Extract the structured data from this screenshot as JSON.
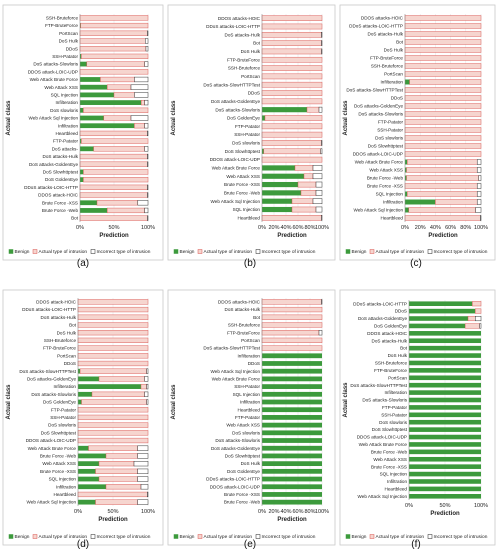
{
  "legend": {
    "benign": "Benign",
    "actual": "Actual type of intrusion",
    "incorrect": "Incorrect type of intrusion"
  },
  "colors": {
    "benign": "#3c9a3c",
    "actual": "#f6d5cf",
    "actual_stroke": "#d9534f",
    "incorrect": "#ffffff"
  },
  "chart_data": [
    {
      "type": "bar",
      "stacked": true,
      "orientation": "horizontal",
      "caption": "(a)",
      "xlabel": "Prediction",
      "ylabel": "Actual class",
      "xticks": [
        "0%",
        "50%",
        "100%"
      ],
      "xlim": [
        0,
        100
      ],
      "categories": [
        "SSH-Bruteforce",
        "FTP-BruteForce",
        "PortScan",
        "DoS Hulk",
        "DDoS",
        "SSH-Patator",
        "DoS attacks-Slowloris",
        "DDOS attack-LOIC-UDP",
        "Web Attack Brute Force",
        "Web Attack XSS",
        "SQL Injection",
        "Infilteration",
        "DoS slowloris",
        "Web Attack Sql Injection",
        "Infiltration",
        "Heartbleed",
        "FTP-Patator",
        "DoS attacks-",
        "DoS attacks-Hulk",
        "DoS attacks-GoldenEye",
        "DoS Slowhttptest",
        "DoS GoldenEye",
        "DDoS attacks-LOIC-HTTP",
        "DDOS attack-HOIC",
        "Brute Force -XSS",
        "Brute Force -Web",
        "Bot"
      ],
      "series": [
        {
          "name": "Benign",
          "values": [
            0,
            1,
            0,
            0,
            0,
            2,
            10,
            0,
            30,
            40,
            50,
            90,
            5,
            35,
            80,
            0,
            2,
            20,
            0,
            0,
            5,
            5,
            0,
            0,
            25,
            40,
            0
          ]
        },
        {
          "name": "Actual type of intrusion",
          "values": [
            100,
            99,
            99,
            96,
            97,
            98,
            85,
            100,
            50,
            35,
            30,
            5,
            95,
            40,
            15,
            99,
            98,
            75,
            99,
            99,
            95,
            95,
            99,
            99,
            60,
            55,
            99
          ]
        },
        {
          "name": "Incorrect type of intrusion",
          "values": [
            0,
            0,
            1,
            4,
            3,
            0,
            5,
            0,
            20,
            25,
            20,
            5,
            0,
            25,
            5,
            1,
            0,
            5,
            1,
            1,
            0,
            0,
            1,
            1,
            15,
            5,
            1
          ]
        }
      ]
    },
    {
      "type": "bar",
      "stacked": true,
      "orientation": "horizontal",
      "caption": "(b)",
      "xlabel": "Prediction",
      "ylabel": "Actual class",
      "xticks": [
        "0%",
        "20%",
        "40%",
        "60%",
        "80%",
        "100%"
      ],
      "xlim": [
        0,
        100
      ],
      "categories": [
        "DDOS attacks-HOIC",
        "DDoS attacks-LOIC-HTTP",
        "DoS attacks-Hulk",
        "Bot",
        "DoS Hulk",
        "FTP-BruteForce",
        "SSH-Bruteforce",
        "PortScan",
        "DoS attacks-SlowHTTPTest",
        "DDoS",
        "DoS attacks-GoldenEye",
        "DoS attacks-Slowloris",
        "DoS GoldenEye",
        "FTP-Patator",
        "SSH-Patator",
        "DoS slowloris",
        "DoS Slowhttptest",
        "DDOS attack-LOIC-UDP",
        "Web Attack Brute Force",
        "Web Attack XSS",
        "Brute Force -XSS",
        "Brute Force -Web",
        "Web Attack Sql Injection",
        "SQL Injection",
        "Heartbleed"
      ],
      "series": [
        {
          "name": "Benign",
          "values": [
            0,
            0,
            0,
            0,
            0,
            0,
            0,
            0,
            0,
            0,
            0,
            75,
            5,
            0,
            0,
            0,
            3,
            0,
            55,
            70,
            60,
            65,
            50,
            50,
            0
          ]
        },
        {
          "name": "Actual type of intrusion",
          "values": [
            100,
            100,
            99,
            99,
            99,
            100,
            100,
            100,
            100,
            100,
            100,
            20,
            95,
            100,
            100,
            99,
            95,
            100,
            30,
            15,
            30,
            25,
            35,
            40,
            99
          ]
        },
        {
          "name": "Incorrect type of intrusion",
          "values": [
            0,
            0,
            1,
            1,
            1,
            0,
            0,
            0,
            0,
            0,
            0,
            5,
            0,
            0,
            0,
            1,
            2,
            0,
            15,
            15,
            10,
            10,
            15,
            10,
            1
          ]
        }
      ]
    },
    {
      "type": "bar",
      "stacked": true,
      "orientation": "horizontal",
      "caption": "(c)",
      "xlabel": "Prediction",
      "ylabel": "Actual class",
      "xticks": [
        "0%",
        "20%",
        "40%",
        "60%",
        "80%",
        "100%"
      ],
      "xlim": [
        0,
        100
      ],
      "categories": [
        "DDOS attacks-HOIC",
        "DDoS attacks-LOIC-HTTP",
        "DoS attacks-Hulk",
        "Bot",
        "DoS Hulk",
        "FTP-BruteForce",
        "SSH-Bruteforce",
        "PortScan",
        "Infilteration",
        "DoS attacks-SlowHTTPTest",
        "DDoS",
        "DoS attacks-GoldenEye",
        "DoS attacks-Slowloris",
        "FTP-Patator",
        "SSH-Patator",
        "DoS slowloris",
        "DoS Slowhttptest",
        "DDOS attack-LOIC-UDP",
        "Web Attack Brute Force",
        "Web Attack XSS",
        "Brute Force -Web",
        "Brute Force -XSS",
        "SQL Injection",
        "Infiltration",
        "Web Attack Sql Injection",
        "Heartbleed"
      ],
      "series": [
        {
          "name": "Benign",
          "values": [
            0,
            0,
            0,
            0,
            0,
            0,
            0,
            0,
            6,
            0,
            0,
            0,
            0,
            0,
            0,
            0,
            0,
            0,
            3,
            2,
            2,
            0,
            3,
            40,
            5,
            0
          ]
        },
        {
          "name": "Actual type of intrusion",
          "values": [
            100,
            100,
            100,
            100,
            100,
            100,
            100,
            100,
            94,
            100,
            100,
            100,
            100,
            100,
            100,
            100,
            100,
            100,
            92,
            93,
            95,
            95,
            92,
            55,
            88,
            99
          ]
        },
        {
          "name": "Incorrect type of intrusion",
          "values": [
            0,
            0,
            0,
            0,
            0,
            0,
            0,
            0,
            0,
            0,
            0,
            0,
            0,
            0,
            0,
            0,
            0,
            0,
            5,
            5,
            3,
            5,
            5,
            5,
            7,
            1
          ]
        }
      ]
    },
    {
      "type": "bar",
      "stacked": true,
      "orientation": "horizontal",
      "caption": "(d)",
      "xlabel": "Prediction",
      "ylabel": "Actual class",
      "xticks": [
        "0%",
        "50%",
        "100%"
      ],
      "xlim": [
        0,
        100
      ],
      "categories": [
        "DDOS attack-HOIC",
        "DDoS attacks-LOIC-HTTP",
        "DoS attacks-Hulk",
        "Bot",
        "DoS Hulk",
        "SSH-Bruteforce",
        "FTP-BruteForce",
        "PortScan",
        "DDoS",
        "DoS attacks-SlowHTTPTest",
        "DoS attacks-GoldenEye",
        "Infilteration",
        "DoS attacks-Slowloris",
        "DoS GoldenEye",
        "FTP-Patator",
        "SSH-Patator",
        "DoS slowloris",
        "DoS Slowhttptest",
        "DDOS attack-LOIC-UDP",
        "Web Attack Brute Force",
        "Brute Force -Web",
        "Web Attack XSS",
        "Brute Force -XSS",
        "SQL Injection",
        "Infiltration",
        "Heartbleed",
        "Web Attack Sql Injection"
      ],
      "series": [
        {
          "name": "Benign",
          "values": [
            0,
            0,
            0,
            0,
            0,
            0,
            0,
            0,
            0,
            3,
            30,
            90,
            20,
            5,
            0,
            0,
            0,
            0,
            0,
            15,
            40,
            30,
            25,
            30,
            40,
            0,
            25
          ]
        },
        {
          "name": "Actual type of intrusion",
          "values": [
            100,
            100,
            100,
            100,
            100,
            100,
            100,
            100,
            100,
            95,
            65,
            8,
            75,
            93,
            100,
            100,
            100,
            100,
            100,
            70,
            45,
            50,
            60,
            55,
            50,
            99,
            60
          ]
        },
        {
          "name": "Incorrect type of intrusion",
          "values": [
            0,
            0,
            0,
            0,
            0,
            0,
            0,
            0,
            0,
            2,
            5,
            2,
            5,
            2,
            0,
            0,
            0,
            0,
            0,
            15,
            15,
            20,
            15,
            15,
            10,
            1,
            15
          ]
        }
      ]
    },
    {
      "type": "bar",
      "stacked": true,
      "orientation": "horizontal",
      "caption": "(e)",
      "xlabel": "Prediction",
      "ylabel": "Actual class",
      "xticks": [
        "0%",
        "20%",
        "40%",
        "60%",
        "80%",
        "100%"
      ],
      "xlim": [
        0,
        100
      ],
      "categories": [
        "DDOS attacks-HOIC",
        "DoS attacks-Hulk",
        "Bot",
        "SSH-Bruteforce",
        "FTP-BruteForce",
        "PortScan",
        "DoS attacks-SlowHTTPTest",
        "Infilteration",
        "DDoS",
        "Web Attack Sql Injection",
        "Web Attack Brute Force",
        "SSH-Patator",
        "SQL Injection",
        "Infiltration",
        "Heartbleed",
        "FTP-Patator",
        "Web Attack XSS",
        "DoS slowloris",
        "DoS attacks-Slowloris",
        "DoS attacks-GoldenEye",
        "DoS Slowhttptest",
        "DoS Hulk",
        "DoS GoldenEye",
        "DDoS attacks-LOIC-HTTP",
        "DDOS attack-LOIC-UDP",
        "Brute Force -XSS",
        "Brute Force -Web"
      ],
      "series": [
        {
          "name": "Benign",
          "values": [
            0,
            0,
            0,
            0,
            0,
            0,
            0,
            100,
            100,
            100,
            100,
            100,
            100,
            100,
            100,
            100,
            100,
            100,
            100,
            100,
            100,
            100,
            100,
            100,
            100,
            100,
            100
          ]
        },
        {
          "name": "Actual type of intrusion",
          "values": [
            99,
            100,
            100,
            100,
            95,
            100,
            100,
            0,
            0,
            0,
            0,
            0,
            0,
            0,
            0,
            0,
            0,
            0,
            0,
            0,
            0,
            0,
            0,
            0,
            0,
            0,
            0
          ]
        },
        {
          "name": "Incorrect type of intrusion",
          "values": [
            1,
            0,
            0,
            0,
            5,
            0,
            0,
            0,
            0,
            0,
            0,
            0,
            0,
            0,
            0,
            0,
            0,
            0,
            0,
            0,
            0,
            0,
            0,
            0,
            0,
            0,
            0
          ]
        }
      ]
    },
    {
      "type": "bar",
      "stacked": true,
      "orientation": "horizontal",
      "caption": "(f)",
      "xlabel": "Prediction",
      "ylabel": "Actual class",
      "xticks": [
        "0%",
        "50%",
        "100%"
      ],
      "xlim": [
        0,
        100
      ],
      "categories": [
        "DDoS attacks-LOIC-HTTP",
        "DDoS",
        "DoS attacks-GoldenEye",
        "DoS GoldenEye",
        "DDOS attack-HOIC",
        "DoS attacks-Hulk",
        "Bot",
        "DoS Hulk",
        "SSH-Bruteforce",
        "FTP-BruteForce",
        "PortScan",
        "DoS attacks-SlowHTTPTest",
        "Infilteration",
        "DoS attacks-Slowloris",
        "FTP-Patator",
        "SSH-Patator",
        "DoS slowloris",
        "DoS Slowhttptest",
        "DDOS attack-LOIC-UDP",
        "Web Attack Brute Force",
        "Brute Force -Web",
        "Web Attack XSS",
        "Brute Force -XSS",
        "SQL Injection",
        "Infiltration",
        "Heartbleed",
        "Web Attack Sql Injection"
      ],
      "series": [
        {
          "name": "Benign",
          "values": [
            88,
            92,
            82,
            78,
            100,
            100,
            100,
            100,
            100,
            100,
            100,
            100,
            100,
            100,
            100,
            100,
            100,
            100,
            100,
            100,
            100,
            100,
            100,
            100,
            100,
            100,
            100
          ]
        },
        {
          "name": "Actual type of intrusion",
          "values": [
            12,
            8,
            10,
            20,
            0,
            0,
            0,
            0,
            0,
            0,
            0,
            0,
            0,
            0,
            0,
            0,
            0,
            0,
            0,
            0,
            0,
            0,
            0,
            0,
            0,
            0,
            0
          ]
        },
        {
          "name": "Incorrect type of intrusion",
          "values": [
            0,
            0,
            8,
            2,
            0,
            0,
            0,
            0,
            0,
            0,
            0,
            0,
            0,
            0,
            0,
            0,
            0,
            0,
            0,
            0,
            0,
            0,
            0,
            0,
            0,
            0,
            0
          ]
        }
      ]
    }
  ]
}
